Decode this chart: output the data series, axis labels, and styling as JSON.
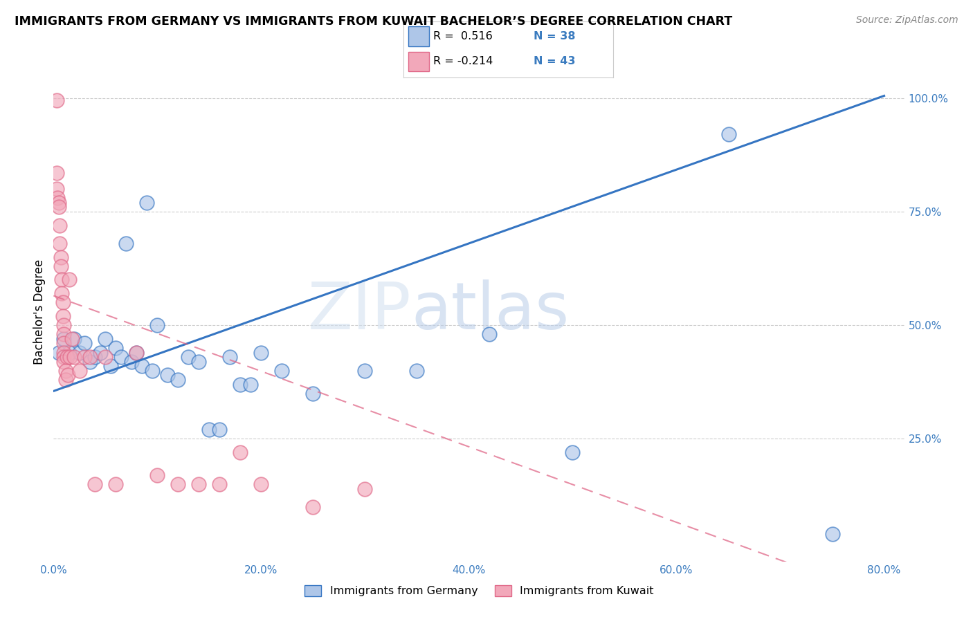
{
  "title": "IMMIGRANTS FROM GERMANY VS IMMIGRANTS FROM KUWAIT BACHELOR’S DEGREE CORRELATION CHART",
  "source": "Source: ZipAtlas.com",
  "ylabel": "Bachelor's Degree",
  "x_tick_labels": [
    "0.0%",
    "20.0%",
    "40.0%",
    "60.0%",
    "80.0%"
  ],
  "x_tick_positions": [
    0.0,
    0.2,
    0.4,
    0.6,
    0.8
  ],
  "y_tick_labels": [
    "25.0%",
    "50.0%",
    "75.0%",
    "100.0%"
  ],
  "y_tick_positions": [
    0.25,
    0.5,
    0.75,
    1.0
  ],
  "xlim": [
    0.0,
    0.82
  ],
  "ylim": [
    -0.02,
    1.08
  ],
  "germany_R": 0.516,
  "germany_N": 38,
  "kuwait_R": -0.214,
  "kuwait_N": 43,
  "germany_color": "#aec6e8",
  "kuwait_color": "#f2a8ba",
  "germany_line_color": "#3575c2",
  "kuwait_line_color": "#e06888",
  "germany_x": [
    0.005,
    0.01,
    0.015,
    0.02,
    0.025,
    0.03,
    0.035,
    0.04,
    0.045,
    0.05,
    0.055,
    0.06,
    0.065,
    0.07,
    0.075,
    0.08,
    0.085,
    0.09,
    0.095,
    0.1,
    0.11,
    0.12,
    0.13,
    0.14,
    0.15,
    0.16,
    0.17,
    0.18,
    0.19,
    0.2,
    0.22,
    0.25,
    0.3,
    0.35,
    0.42,
    0.5,
    0.65,
    0.75
  ],
  "germany_y": [
    0.44,
    0.47,
    0.44,
    0.47,
    0.44,
    0.46,
    0.42,
    0.43,
    0.44,
    0.47,
    0.41,
    0.45,
    0.43,
    0.68,
    0.42,
    0.44,
    0.41,
    0.77,
    0.4,
    0.5,
    0.39,
    0.38,
    0.43,
    0.42,
    0.27,
    0.27,
    0.43,
    0.37,
    0.37,
    0.44,
    0.4,
    0.35,
    0.4,
    0.4,
    0.48,
    0.22,
    0.92,
    0.04
  ],
  "kuwait_x": [
    0.003,
    0.003,
    0.004,
    0.005,
    0.005,
    0.006,
    0.006,
    0.007,
    0.007,
    0.008,
    0.008,
    0.009,
    0.009,
    0.01,
    0.01,
    0.01,
    0.01,
    0.01,
    0.01,
    0.012,
    0.012,
    0.013,
    0.014,
    0.015,
    0.016,
    0.018,
    0.02,
    0.025,
    0.03,
    0.035,
    0.04,
    0.05,
    0.06,
    0.08,
    0.1,
    0.12,
    0.14,
    0.16,
    0.18,
    0.2,
    0.25,
    0.3,
    0.003
  ],
  "kuwait_y": [
    0.995,
    0.8,
    0.78,
    0.77,
    0.76,
    0.72,
    0.68,
    0.65,
    0.63,
    0.6,
    0.57,
    0.55,
    0.52,
    0.5,
    0.48,
    0.46,
    0.44,
    0.43,
    0.42,
    0.4,
    0.38,
    0.43,
    0.39,
    0.6,
    0.43,
    0.47,
    0.43,
    0.4,
    0.43,
    0.43,
    0.15,
    0.43,
    0.15,
    0.44,
    0.17,
    0.15,
    0.15,
    0.15,
    0.22,
    0.15,
    0.1,
    0.14,
    0.835
  ],
  "watermark_zip": "ZIP",
  "watermark_atlas": "atlas",
  "bottom_legend_labels": [
    "Immigrants from Germany",
    "Immigrants from Kuwait"
  ]
}
